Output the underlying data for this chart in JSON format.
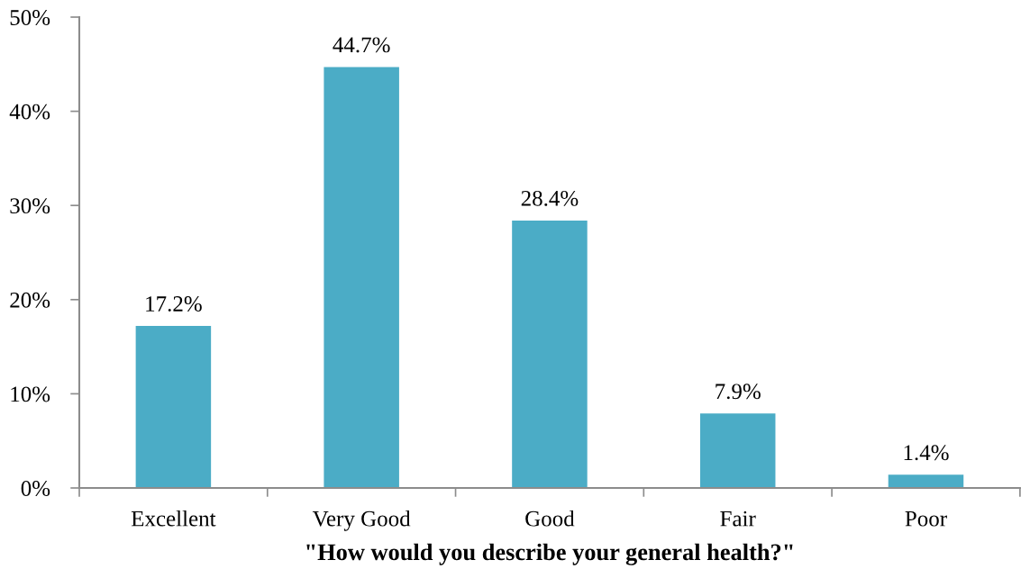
{
  "chart_data": {
    "type": "bar",
    "xlabel": "\"How would you describe your general health?\"",
    "categories": [
      "Excellent",
      "Very Good",
      "Good",
      "Fair",
      "Poor"
    ],
    "values": [
      17.2,
      44.7,
      28.4,
      7.9,
      1.4
    ],
    "value_labels": [
      "17.2%",
      "44.7%",
      "28.4%",
      "7.9%",
      "1.4%"
    ],
    "color": "#4bacc6",
    "ylim": [
      0,
      50
    ],
    "yticks": [
      {
        "value": 0,
        "label": "0%"
      },
      {
        "value": 10,
        "label": "10%"
      },
      {
        "value": 20,
        "label": "20%"
      },
      {
        "value": 30,
        "label": "30%"
      },
      {
        "value": 40,
        "label": "40%"
      },
      {
        "value": 50,
        "label": "50%"
      }
    ],
    "grid": false
  }
}
